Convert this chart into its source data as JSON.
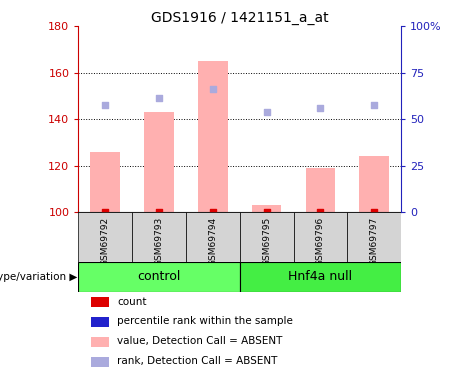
{
  "title": "GDS1916 / 1421151_a_at",
  "samples": [
    "GSM69792",
    "GSM69793",
    "GSM69794",
    "GSM69795",
    "GSM69796",
    "GSM69797"
  ],
  "bar_values": [
    126,
    143,
    165,
    103,
    119,
    124
  ],
  "rank_values": [
    146,
    149,
    153,
    143,
    145,
    146
  ],
  "count_values": [
    100,
    100,
    100,
    100,
    100,
    100
  ],
  "ylim_left": [
    100,
    180
  ],
  "yticks_left": [
    100,
    120,
    140,
    160,
    180
  ],
  "ytick_labels_right": [
    "0",
    "25",
    "50",
    "75",
    "100%"
  ],
  "bar_color": "#ffb0b0",
  "rank_color": "#aaaadd",
  "count_color": "#dd0000",
  "blue_dot_color": "#2222cc",
  "left_axis_color": "#cc0000",
  "right_axis_color": "#2222bb",
  "control_color": "#66ff66",
  "hnf4a_color": "#44ee44",
  "sample_box_color": "#d4d4d4",
  "group_label": "genotype/variation",
  "control_label": "control",
  "hnf4a_label": "Hnf4a null"
}
